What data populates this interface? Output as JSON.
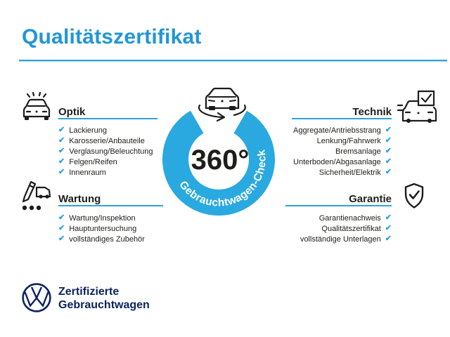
{
  "title": "Qualitätszertifikat",
  "colors": {
    "accent_blue": "#2196d4",
    "line_blue": "#2ba4da",
    "check_blue": "#25a2e3",
    "ring_blue": "#29a9e0",
    "navy": "#0d2360",
    "text_dark": "#1d1d1b"
  },
  "check_glyph": "✔",
  "center": {
    "degree_label": "360°",
    "ring_label": "Gebrauchtwagen-Check",
    "car_icon": "car-rotation-icon"
  },
  "sections": {
    "optik": {
      "label": "Optik",
      "icon": "car-front-lights-icon",
      "align": "left",
      "items": [
        "Lackierung",
        "Karosserie/Anbauteile",
        "Verglasung/Beleuchtung",
        "Felgen/Reifen",
        "Innenraum"
      ]
    },
    "technik": {
      "label": "Technik",
      "icon": "car-checkbox-icon",
      "align": "right",
      "items": [
        "Aggregate/Antriebsstrang",
        "Lenkung/Fahrwerk",
        "Bremsanlage",
        "Unterboden/Abgasanlage",
        "Sicherheit/Elektrik"
      ]
    },
    "wartung": {
      "label": "Wartung",
      "icon": "service-pencil-car-icon",
      "align": "left",
      "items": [
        "Wartung/Inspektion",
        "Hauptuntersuchung",
        "vollständiges Zubehör"
      ]
    },
    "garantie": {
      "label": "Garantie",
      "icon": "shield-check-icon",
      "align": "right",
      "items": [
        "Garantienachweis",
        "Qualitätszertifikat",
        "vollständige Unterlagen"
      ]
    }
  },
  "footer": {
    "logo": "vw-logo",
    "line1": "Zertifizierte",
    "line2": "Gebrauchtwagen"
  }
}
